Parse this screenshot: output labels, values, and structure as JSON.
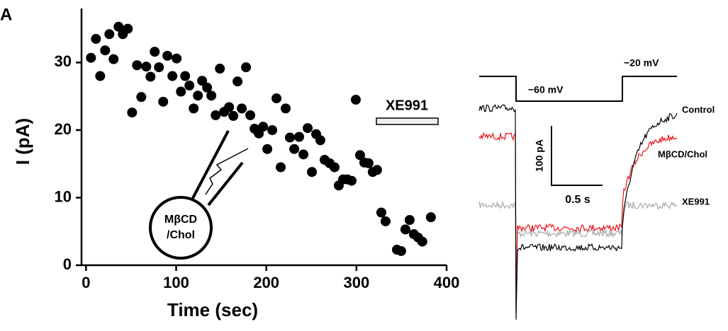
{
  "panel_label": "A",
  "chart_data": {
    "type": "scatter",
    "xlabel": "Time (sec)",
    "ylabel": "I (pA)",
    "xlim": [
      -5,
      400
    ],
    "ylim": [
      0,
      38
    ],
    "xticks": [
      0,
      100,
      200,
      300,
      400
    ],
    "yticks": [
      0,
      10,
      20,
      30
    ],
    "color": "#000000",
    "x": [
      5.5,
      11,
      15.7,
      21.2,
      25.9,
      30.6,
      36.1,
      40.8,
      46.3,
      51.1,
      56.6,
      61.3,
      66.8,
      71.5,
      76.2,
      80.9,
      85.6,
      90.3,
      95.8,
      100.5,
      105.3,
      110,
      114.7,
      119.4,
      124.1,
      128.8,
      134.3,
      139,
      143.8,
      148.5,
      153.2,
      158.7,
      163.4,
      168.1,
      172.8,
      177.5,
      182.2,
      187,
      191.7,
      196.4,
      201.1,
      206.6,
      211.3,
      216,
      221.5,
      226.2,
      231,
      236.4,
      241.2,
      245.9,
      250.6,
      255.3,
      260,
      264.7,
      270.2,
      275.7,
      280.4,
      285.2,
      289.9,
      294.6,
      299.3,
      304,
      308.7,
      313.4,
      318.1,
      322.9,
      327.6,
      332.3,
      344.9,
      349.6,
      354.3,
      359,
      363.7,
      368.4,
      373.1,
      382.6
    ],
    "values": [
      30.7,
      33.5,
      28.0,
      31.8,
      34.2,
      30.5,
      35.3,
      34.2,
      35.0,
      22.6,
      29.6,
      24.9,
      29.4,
      27.9,
      31.6,
      29.3,
      24.2,
      31.0,
      28.0,
      30.6,
      25.7,
      28.0,
      26.6,
      23.2,
      25.1,
      27.3,
      26.3,
      25.1,
      22.2,
      29.1,
      22.7,
      23.4,
      22.1,
      27.2,
      23.2,
      29.3,
      22.2,
      20.2,
      19.5,
      20.5,
      17.2,
      20.0,
      24.7,
      14.5,
      23.2,
      18.9,
      17.2,
      19.0,
      16.4,
      20.3,
      13.8,
      19.4,
      18.5,
      15.6,
      15.1,
      14.5,
      11.8,
      12.7,
      12.7,
      12.5,
      24.5,
      16.3,
      15.2,
      15.1,
      13.8,
      14.1,
      7.8,
      6.5,
      2.3,
      2.1,
      5.3,
      6.7,
      4.6,
      4.1,
      3.5,
      7.1
    ],
    "annotations": {
      "drug_bar": "XE991",
      "pipette": [
        "MβCD",
        "/Chol"
      ]
    }
  },
  "trace_panel": {
    "holding": "−60 mV",
    "step": "−20 mV",
    "traces": [
      "Control",
      "MβCD/Chol",
      "XE991"
    ],
    "scale_current": "100 pA",
    "scale_time": "0.5 s"
  }
}
